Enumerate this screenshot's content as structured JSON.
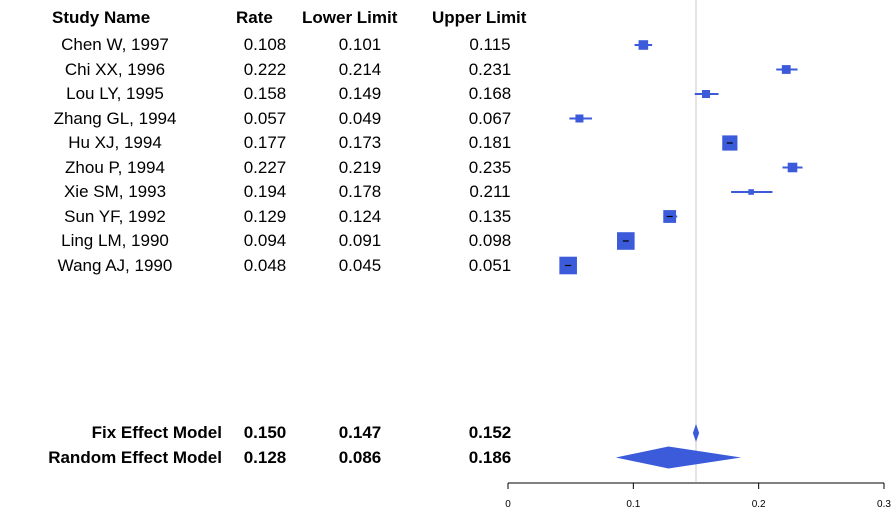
{
  "table": {
    "headers": {
      "study": "Study Name",
      "rate": "Rate",
      "lower": "Lower Limit",
      "upper": "Upper Limit"
    },
    "studies": [
      {
        "name": "Chen W, 1997",
        "rate": "0.108",
        "lower": "0.101",
        "upper": "0.115"
      },
      {
        "name": "Chi XX, 1996",
        "rate": "0.222",
        "lower": "0.214",
        "upper": "0.231"
      },
      {
        "name": "Lou LY, 1995",
        "rate": "0.158",
        "lower": "0.149",
        "upper": "0.168"
      },
      {
        "name": "Zhang GL, 1994",
        "rate": "0.057",
        "lower": "0.049",
        "upper": "0.067"
      },
      {
        "name": "Hu XJ, 1994",
        "rate": "0.177",
        "lower": "0.173",
        "upper": "0.181"
      },
      {
        "name": "Zhou P, 1994",
        "rate": "0.227",
        "lower": "0.219",
        "upper": "0.235"
      },
      {
        "name": "Xie SM, 1993",
        "rate": "0.194",
        "lower": "0.178",
        "upper": "0.211"
      },
      {
        "name": "Sun YF, 1992",
        "rate": "0.129",
        "lower": "0.124",
        "upper": "0.135"
      },
      {
        "name": "Ling LM, 1990",
        "rate": "0.094",
        "lower": "0.091",
        "upper": "0.098"
      },
      {
        "name": "Wang AJ, 1990",
        "rate": "0.048",
        "lower": "0.045",
        "upper": "0.051"
      }
    ],
    "summary": [
      {
        "name": "Fix Effect Model",
        "rate": "0.150",
        "lower": "0.147",
        "upper": "0.152"
      },
      {
        "name": "Random Effect Model",
        "rate": "0.128",
        "lower": "0.086",
        "upper": "0.186"
      }
    ]
  },
  "chart_data": {
    "type": "forest",
    "xlim": [
      0,
      0.3
    ],
    "x_ticks": [
      "0",
      "0.1",
      "0.2",
      "0.3"
    ],
    "reference_line": 0.15,
    "studies": [
      {
        "name": "Chen W, 1997",
        "rate": 0.108,
        "lower": 0.101,
        "upper": 0.115,
        "weight": 0.35
      },
      {
        "name": "Chi XX, 1996",
        "rate": 0.222,
        "lower": 0.214,
        "upper": 0.231,
        "weight": 0.3
      },
      {
        "name": "Lou LY, 1995",
        "rate": 0.158,
        "lower": 0.149,
        "upper": 0.168,
        "weight": 0.25
      },
      {
        "name": "Zhang GL, 1994",
        "rate": 0.057,
        "lower": 0.049,
        "upper": 0.067,
        "weight": 0.25
      },
      {
        "name": "Hu XJ, 1994",
        "rate": 0.177,
        "lower": 0.173,
        "upper": 0.181,
        "weight": 0.7
      },
      {
        "name": "Zhou P, 1994",
        "rate": 0.227,
        "lower": 0.219,
        "upper": 0.235,
        "weight": 0.35
      },
      {
        "name": "Xie SM, 1993",
        "rate": 0.194,
        "lower": 0.178,
        "upper": 0.211,
        "weight": 0.1
      },
      {
        "name": "Sun YF, 1992",
        "rate": 0.129,
        "lower": 0.124,
        "upper": 0.135,
        "weight": 0.55
      },
      {
        "name": "Ling LM, 1990",
        "rate": 0.094,
        "lower": 0.091,
        "upper": 0.098,
        "weight": 0.85
      },
      {
        "name": "Wang AJ, 1990",
        "rate": 0.048,
        "lower": 0.045,
        "upper": 0.051,
        "weight": 0.85
      }
    ],
    "summary": [
      {
        "name": "Fix Effect Model",
        "rate": 0.15,
        "lower": 0.147,
        "upper": 0.152
      },
      {
        "name": "Random Effect Model",
        "rate": 0.128,
        "lower": 0.086,
        "upper": 0.186
      }
    ],
    "colors": {
      "marker": "#3b5bdb",
      "refline": "#c8c8c8",
      "axis": "#000000"
    }
  }
}
